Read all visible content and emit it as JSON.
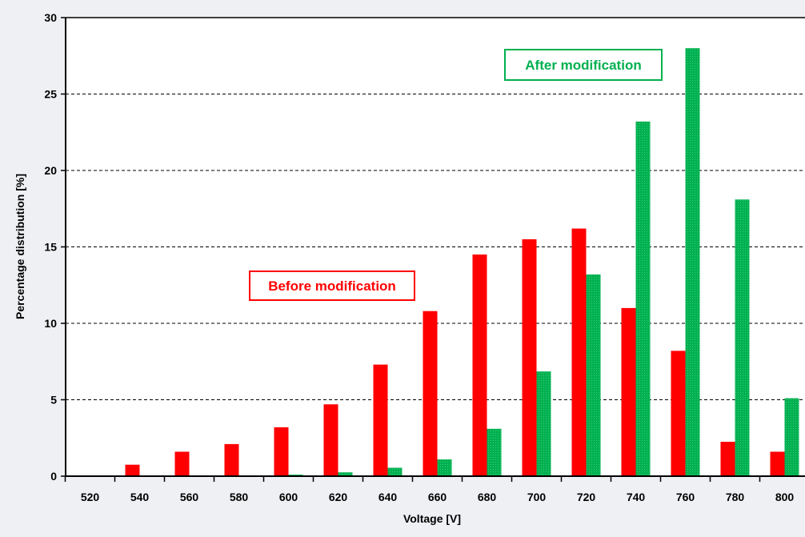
{
  "chart_data": {
    "type": "bar",
    "xlabel": "Voltage [V]",
    "ylabel": "Percentage distribution [%]",
    "ylim": [
      0,
      30
    ],
    "yticks": [
      0,
      5,
      10,
      15,
      20,
      25,
      30
    ],
    "grid": "horizontal dashed",
    "categories": [
      "520",
      "540",
      "560",
      "580",
      "600",
      "620",
      "640",
      "660",
      "680",
      "700",
      "720",
      "740",
      "760",
      "780",
      "800"
    ],
    "series": [
      {
        "name": "Before modification",
        "color": "#ff0000",
        "values": [
          0,
          0.75,
          1.6,
          2.1,
          3.2,
          4.7,
          7.3,
          10.8,
          14.5,
          15.5,
          16.2,
          11.0,
          8.2,
          2.25,
          1.6
        ]
      },
      {
        "name": "After modification",
        "color": "#00b050",
        "values": [
          0,
          0,
          0,
          0,
          0.1,
          0.25,
          0.55,
          1.1,
          3.1,
          6.85,
          13.2,
          23.2,
          28.0,
          18.1,
          5.1
        ]
      }
    ]
  }
}
